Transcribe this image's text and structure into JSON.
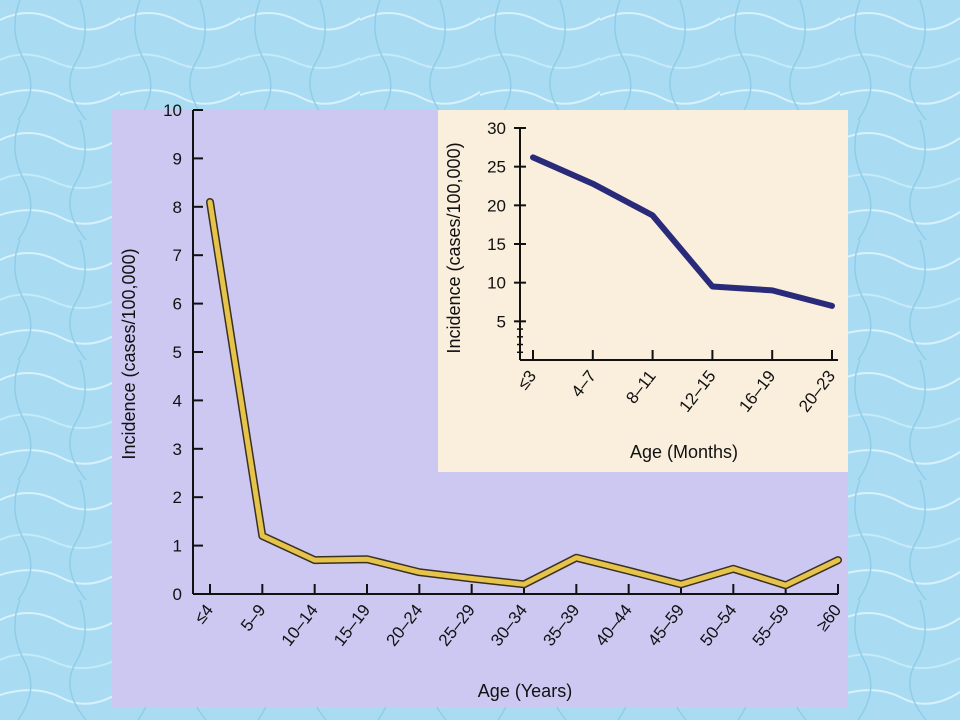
{
  "colors": {
    "background": "#a9dcf2",
    "main_panel": "#cdc8f2",
    "inset_panel": "#faeedd",
    "main_line": "#e6c34a",
    "main_line_outline": "#3a3020",
    "inset_line": "#2a2a7a"
  },
  "chart_data": [
    {
      "type": "line",
      "xlabel": "Age (Years)",
      "ylabel": "Incidence (cases/100,000)",
      "categories": [
        "≤4",
        "5–9",
        "10–14",
        "15–19",
        "20–24",
        "25–29",
        "30–34",
        "35–39",
        "40–44",
        "45–59",
        "50–54",
        "55–59",
        "≥60"
      ],
      "y_ticks": [
        "0",
        "1",
        "2",
        "3",
        "4",
        "5",
        "6",
        "7",
        "8",
        "9",
        "10"
      ],
      "ylim": [
        0,
        10
      ],
      "grid": false,
      "series": [
        {
          "values": [
            8.1,
            1.2,
            0.7,
            0.72,
            0.45,
            0.32,
            0.2,
            0.75,
            0.48,
            0.2,
            0.52,
            0.18,
            0.7
          ]
        }
      ]
    },
    {
      "type": "line",
      "xlabel": "Age (Months)",
      "ylabel": "Incidence (cases/100,000)",
      "categories": [
        "≤3",
        "4–7",
        "8–11",
        "12–15",
        "16–19",
        "20–23"
      ],
      "y_ticks": [
        "5",
        "10",
        "15",
        "20",
        "25",
        "30"
      ],
      "ylim": [
        0,
        30
      ],
      "grid": false,
      "series": [
        {
          "values": [
            26.2,
            22.8,
            18.7,
            9.5,
            9.0,
            7.0
          ]
        }
      ]
    }
  ]
}
